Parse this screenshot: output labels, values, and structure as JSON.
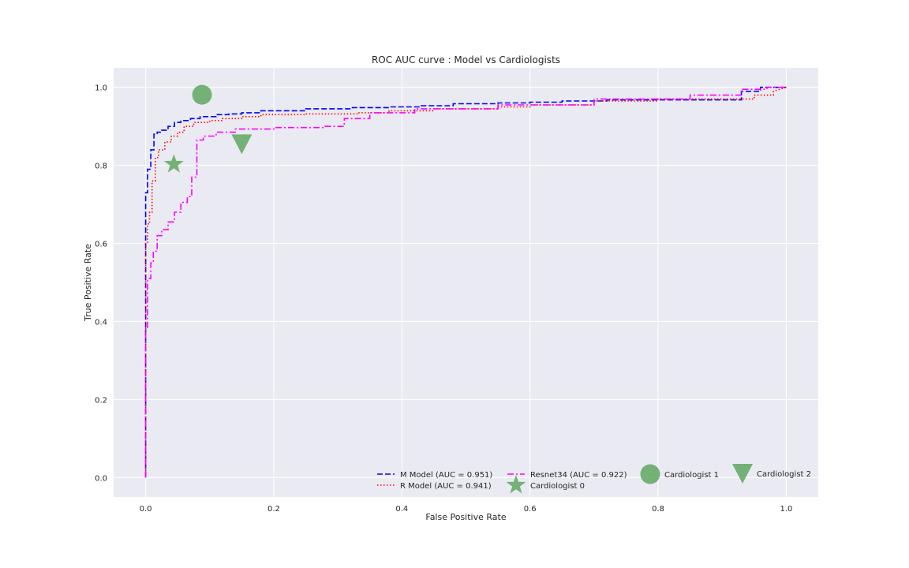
{
  "chart_data": {
    "type": "line",
    "title": "ROC AUC curve : Model vs Cardiologists",
    "xlabel": "False Positive Rate",
    "ylabel": "True Positive Rate",
    "xlim": [
      -0.05,
      1.05
    ],
    "ylim": [
      -0.05,
      1.05
    ],
    "x_ticks": [
      0.0,
      0.2,
      0.4,
      0.6,
      0.8,
      1.0
    ],
    "y_ticks": [
      0.0,
      0.2,
      0.4,
      0.6,
      0.8,
      1.0
    ],
    "x_tick_labels": [
      "0.0",
      "0.2",
      "0.4",
      "0.6",
      "0.8",
      "1.0"
    ],
    "y_tick_labels": [
      "0.0",
      "0.2",
      "0.4",
      "0.6",
      "0.8",
      "1.0"
    ],
    "grid": true,
    "legend_position": "lower-right",
    "series": [
      {
        "name": "M Model (AUC = 0.951)",
        "color": "#0000ff",
        "dash": "dashed",
        "x": [
          0.0,
          0.0,
          0.003,
          0.003,
          0.008,
          0.008,
          0.013,
          0.013,
          0.018,
          0.018,
          0.025,
          0.025,
          0.035,
          0.035,
          0.045,
          0.045,
          0.055,
          0.055,
          0.07,
          0.07,
          0.085,
          0.085,
          0.11,
          0.11,
          0.13,
          0.13,
          0.15,
          0.15,
          0.18,
          0.18,
          0.25,
          0.25,
          0.32,
          0.32,
          0.38,
          0.38,
          0.43,
          0.43,
          0.48,
          0.48,
          0.55,
          0.55,
          0.6,
          0.6,
          0.65,
          0.65,
          0.72,
          0.72,
          0.8,
          0.8,
          0.93,
          0.93,
          0.96,
          0.96,
          1.0
        ],
        "y": [
          0.0,
          0.73,
          0.73,
          0.79,
          0.79,
          0.84,
          0.84,
          0.88,
          0.88,
          0.885,
          0.885,
          0.89,
          0.89,
          0.9,
          0.9,
          0.91,
          0.91,
          0.915,
          0.915,
          0.92,
          0.92,
          0.925,
          0.925,
          0.93,
          0.93,
          0.932,
          0.932,
          0.935,
          0.935,
          0.94,
          0.94,
          0.945,
          0.945,
          0.948,
          0.948,
          0.95,
          0.95,
          0.953,
          0.953,
          0.958,
          0.958,
          0.96,
          0.96,
          0.962,
          0.962,
          0.965,
          0.965,
          0.968,
          0.968,
          0.968,
          0.968,
          0.99,
          0.99,
          1.0,
          1.0
        ]
      },
      {
        "name": "R Model (AUC = 0.941)",
        "color": "#ff0000",
        "dash": "dotted",
        "x": [
          0.0,
          0.0,
          0.003,
          0.003,
          0.006,
          0.006,
          0.01,
          0.01,
          0.015,
          0.015,
          0.02,
          0.02,
          0.03,
          0.03,
          0.04,
          0.04,
          0.05,
          0.05,
          0.06,
          0.06,
          0.075,
          0.075,
          0.1,
          0.1,
          0.12,
          0.12,
          0.15,
          0.15,
          0.18,
          0.18,
          0.25,
          0.25,
          0.33,
          0.33,
          0.38,
          0.38,
          0.45,
          0.45,
          0.55,
          0.55,
          0.6,
          0.6,
          0.7,
          0.7,
          0.8,
          0.8,
          0.95,
          0.95,
          0.98,
          0.98,
          1.0
        ],
        "y": [
          0.0,
          0.6,
          0.6,
          0.65,
          0.65,
          0.68,
          0.68,
          0.76,
          0.76,
          0.82,
          0.82,
          0.84,
          0.84,
          0.86,
          0.86,
          0.875,
          0.875,
          0.885,
          0.885,
          0.9,
          0.9,
          0.91,
          0.91,
          0.915,
          0.915,
          0.92,
          0.92,
          0.925,
          0.925,
          0.93,
          0.93,
          0.932,
          0.932,
          0.935,
          0.935,
          0.94,
          0.94,
          0.945,
          0.945,
          0.95,
          0.95,
          0.955,
          0.955,
          0.965,
          0.965,
          0.97,
          0.97,
          0.98,
          0.98,
          0.99,
          1.0
        ]
      },
      {
        "name": "Resnet34 (AUC = 0.922)",
        "color": "#ff00ff",
        "dash": "dashdot",
        "x": [
          0.0,
          0.0,
          0.003,
          0.003,
          0.008,
          0.008,
          0.012,
          0.012,
          0.018,
          0.018,
          0.025,
          0.025,
          0.035,
          0.035,
          0.045,
          0.045,
          0.055,
          0.055,
          0.065,
          0.065,
          0.072,
          0.072,
          0.08,
          0.08,
          0.09,
          0.09,
          0.11,
          0.11,
          0.14,
          0.14,
          0.2,
          0.2,
          0.28,
          0.28,
          0.31,
          0.31,
          0.35,
          0.35,
          0.42,
          0.42,
          0.55,
          0.55,
          0.7,
          0.7,
          0.85,
          0.85,
          0.93,
          0.93,
          0.97,
          0.97,
          1.0
        ],
        "y": [
          0.0,
          0.38,
          0.38,
          0.51,
          0.51,
          0.55,
          0.55,
          0.58,
          0.58,
          0.62,
          0.62,
          0.635,
          0.635,
          0.655,
          0.655,
          0.68,
          0.68,
          0.705,
          0.705,
          0.72,
          0.72,
          0.77,
          0.77,
          0.865,
          0.865,
          0.875,
          0.875,
          0.885,
          0.885,
          0.893,
          0.893,
          0.897,
          0.897,
          0.9,
          0.9,
          0.92,
          0.92,
          0.935,
          0.935,
          0.945,
          0.945,
          0.955,
          0.955,
          0.97,
          0.97,
          0.98,
          0.98,
          0.995,
          0.995,
          1.0,
          1.0
        ]
      }
    ],
    "markers": [
      {
        "name": "Cardiologist 0",
        "x": 0.044,
        "y": 0.803,
        "shape": "star",
        "color": "#5aa55a"
      },
      {
        "name": "Cardiologist 1",
        "x": 0.088,
        "y": 0.981,
        "shape": "circle",
        "color": "#5aa55a"
      },
      {
        "name": "Cardiologist 2",
        "x": 0.15,
        "y": 0.855,
        "shape": "triangle-down",
        "color": "#5aa55a"
      }
    ]
  }
}
